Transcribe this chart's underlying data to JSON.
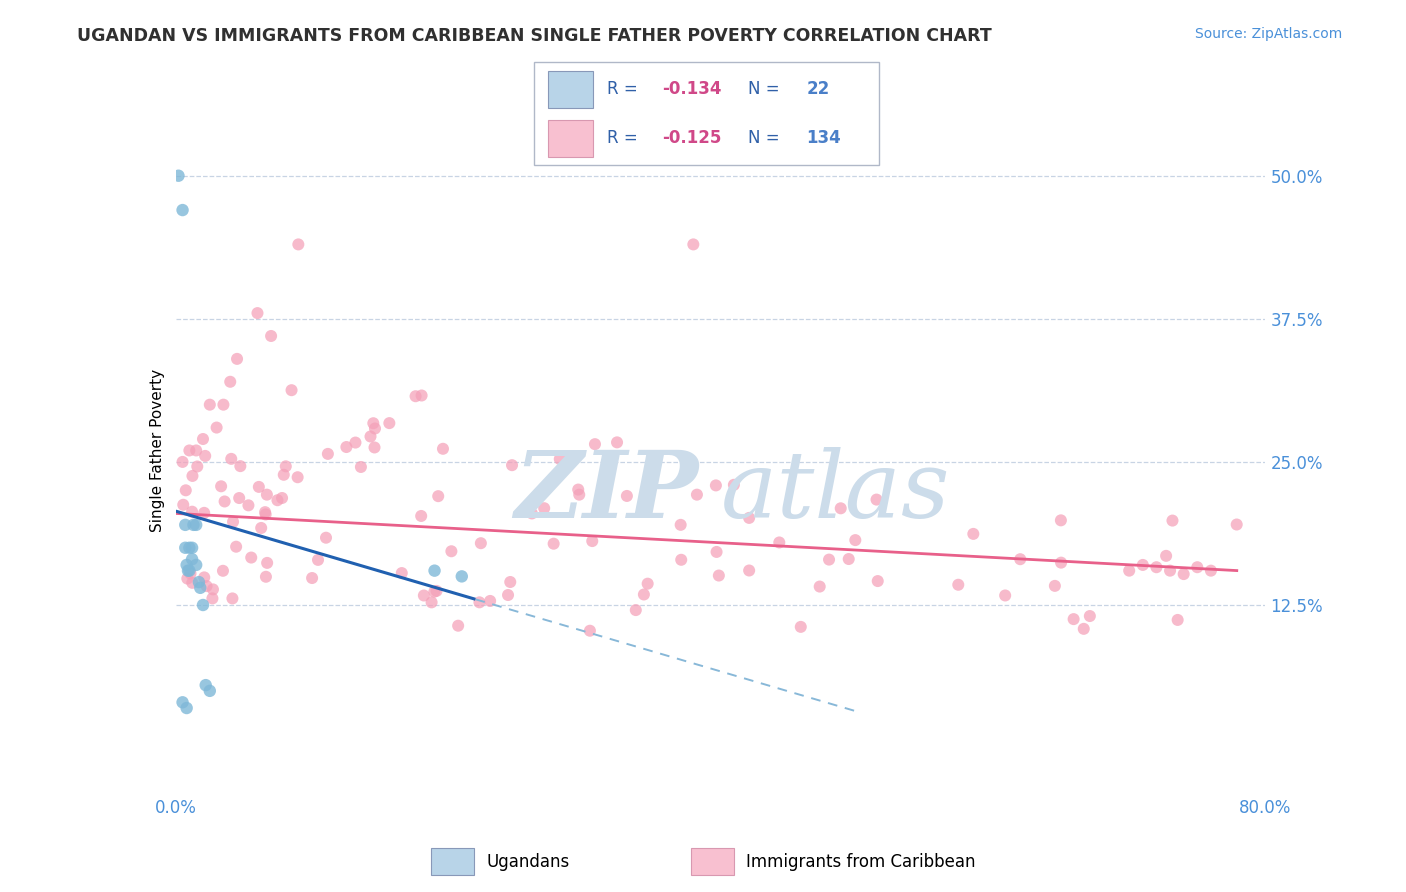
{
  "title": "UGANDAN VS IMMIGRANTS FROM CARIBBEAN SINGLE FATHER POVERTY CORRELATION CHART",
  "source": "Source: ZipAtlas.com",
  "ylabel": "Single Father Poverty",
  "ytick_labels": [
    "12.5%",
    "25.0%",
    "37.5%",
    "50.0%"
  ],
  "ytick_values": [
    0.125,
    0.25,
    0.375,
    0.5
  ],
  "xmin": 0.0,
  "xmax": 0.8,
  "ymin": -0.04,
  "ymax": 0.56,
  "r_ugandan": -0.134,
  "n_ugandan": 22,
  "r_caribbean": -0.125,
  "n_caribbean": 134,
  "blue_dot_color": "#7fb8d8",
  "blue_light_fill": "#b8d4e8",
  "pink_dot_color": "#f4a0b8",
  "pink_line_color": "#e8608a",
  "blue_line_color": "#2060b0",
  "blue_dash_color": "#88b8d8",
  "watermark_color": "#ccdcea",
  "grid_color": "#c8d4e4",
  "title_color": "#303030",
  "axis_tick_color": "#4a90d9",
  "legend_r_color": "#d04888",
  "legend_n_color": "#4a7fc8",
  "legend_text_color": "#3060a8"
}
